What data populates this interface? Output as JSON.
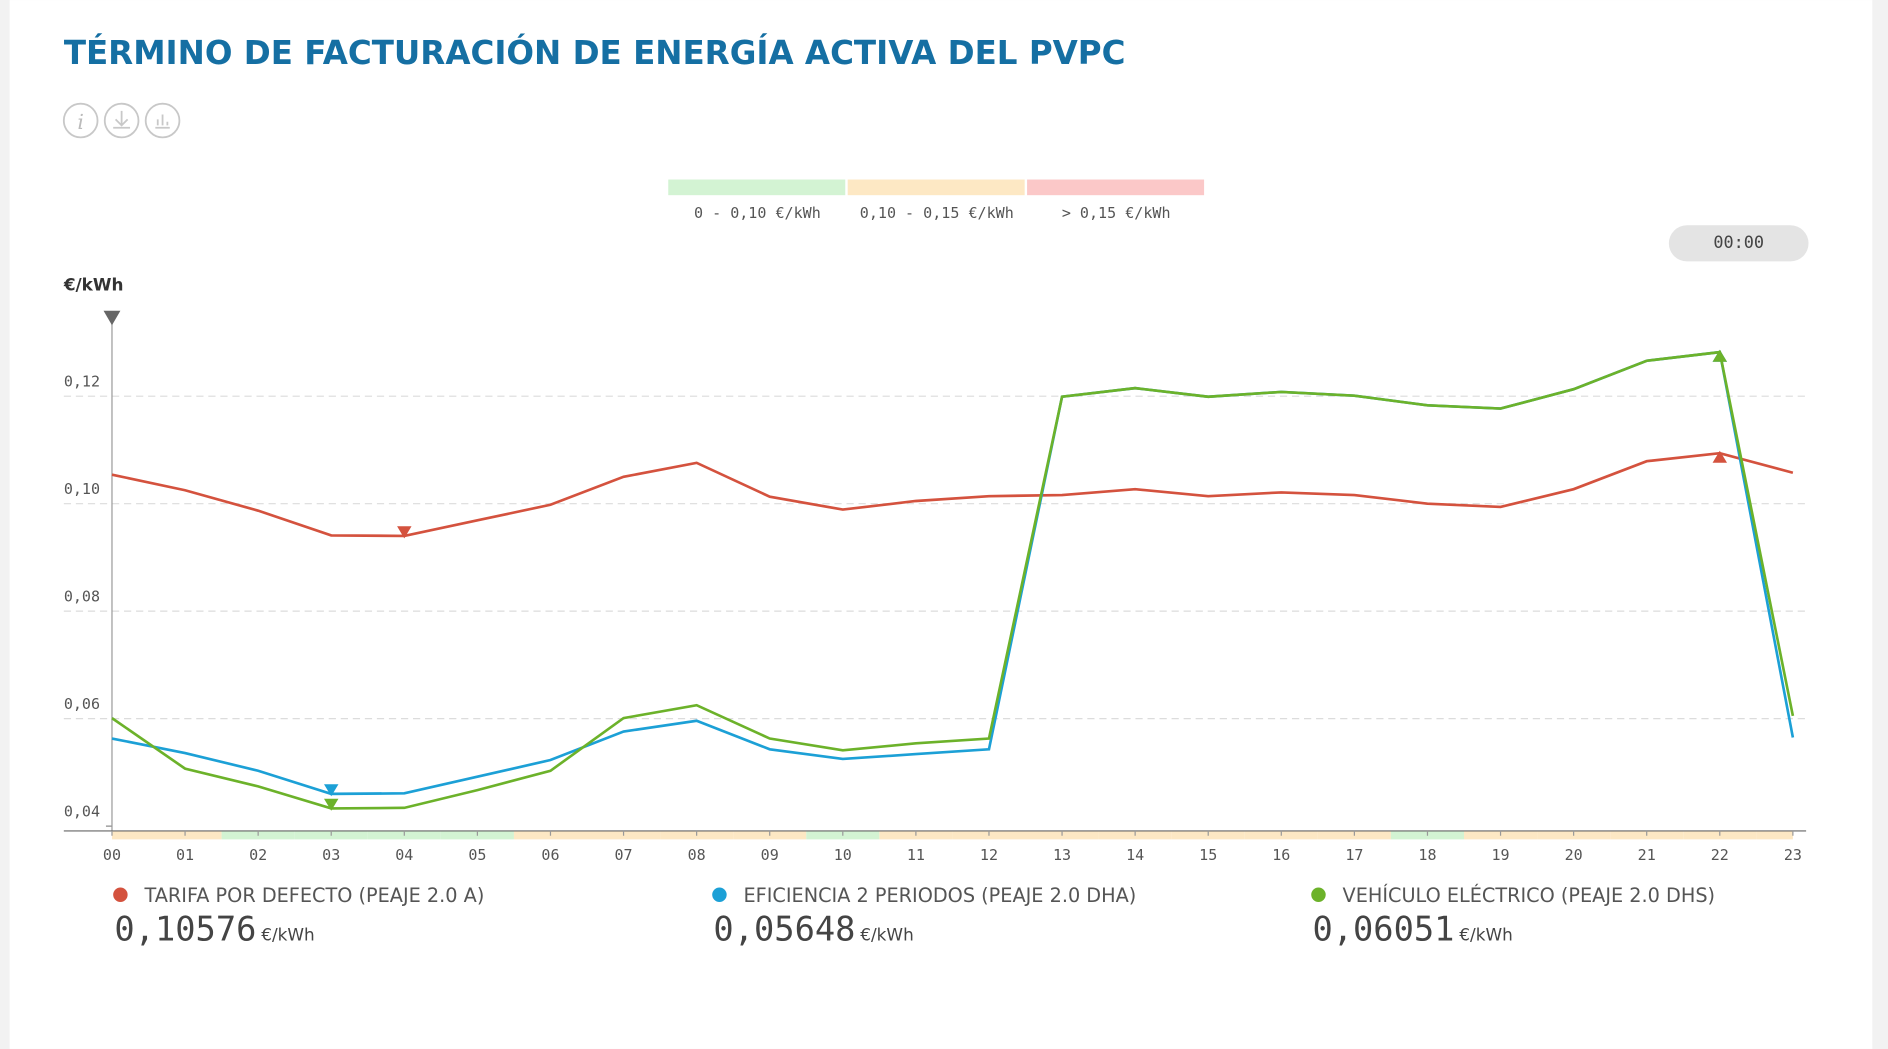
{
  "chart_data": {
    "type": "line",
    "title": "TÉRMINO DE FACTURACIÓN DE ENERGÍA ACTIVA DEL PVPC",
    "y_label": "€/kWh",
    "time_badge": "00:00",
    "legend_ranges": [
      {
        "label": "0 - 0,10 €/kWh",
        "color": "#d3f3d3"
      },
      {
        "label": "0,10 - 0,15 €/kWh",
        "color": "#fde8c4"
      },
      {
        "label": "> 0,15 €/kWh",
        "color": "#fbc8c8"
      }
    ],
    "categories": [
      "00",
      "01",
      "02",
      "03",
      "04",
      "05",
      "06",
      "07",
      "08",
      "09",
      "10",
      "11",
      "12",
      "13",
      "14",
      "15",
      "16",
      "17",
      "18",
      "19",
      "20",
      "21",
      "22",
      "23"
    ],
    "hour_band_colors": [
      "#fde8c4",
      "#fde8c4",
      "#d3f3d3",
      "#d3f3d3",
      "#d3f3d3",
      "#d3f3d3",
      "#fde8c4",
      "#fde8c4",
      "#fde8c4",
      "#fde8c4",
      "#d3f3d3",
      "#fde8c4",
      "#fde8c4",
      "#fde8c4",
      "#fde8c4",
      "#fde8c4",
      "#fde8c4",
      "#fde8c4",
      "#d3f3d3",
      "#fde8c4",
      "#fde8c4",
      "#fde8c4",
      "#fde8c4",
      "#fde8c4"
    ],
    "series": [
      {
        "name": "TARIFA POR DEFECTO (PEAJE 2.0 A)",
        "color": "#d4523e",
        "current_label": "0,10576",
        "values": [
          0.1054,
          0.1025,
          0.0987,
          0.0941,
          0.094,
          0.0969,
          0.0998,
          0.105,
          0.1076,
          0.1013,
          0.0989,
          0.1005,
          0.1014,
          0.1016,
          0.1027,
          0.1014,
          0.1021,
          0.1016,
          0.1,
          0.0994,
          0.1027,
          0.1079,
          0.1094,
          0.10576
        ]
      },
      {
        "name": "EFICIENCIA 2 PERIODOS (PEAJE 2.0 DHA)",
        "color": "#1ca0d6",
        "current_label": "0,05648",
        "values": [
          0.0563,
          0.0536,
          0.0503,
          0.046,
          0.0461,
          0.0492,
          0.0523,
          0.0576,
          0.0596,
          0.0543,
          0.0525,
          0.0534,
          0.0543,
          0.1199,
          0.1215,
          0.1199,
          0.1208,
          0.1201,
          0.1183,
          0.1177,
          0.1213,
          0.1266,
          0.1282,
          0.05648
        ]
      },
      {
        "name": "VEHÍCULO ELÉCTRICO (PEAJE 2.0 DHS)",
        "color": "#6cb22a",
        "current_label": "0,06051",
        "values": [
          0.0601,
          0.0507,
          0.0474,
          0.0433,
          0.0434,
          0.0467,
          0.0503,
          0.0601,
          0.0625,
          0.0563,
          0.0541,
          0.0554,
          0.0563,
          0.1199,
          0.1215,
          0.1199,
          0.1208,
          0.1201,
          0.1183,
          0.1177,
          0.1213,
          0.1266,
          0.1282,
          0.06051
        ]
      }
    ],
    "ylim": [
      0.04,
      0.135
    ],
    "yticks": [
      {
        "value": 0.04,
        "label": "0,04"
      },
      {
        "value": 0.06,
        "label": "0,06"
      },
      {
        "value": 0.08,
        "label": "0,08"
      },
      {
        "value": 0.1,
        "label": "0,10"
      },
      {
        "value": 0.12,
        "label": "0,12"
      }
    ],
    "grid": true
  }
}
